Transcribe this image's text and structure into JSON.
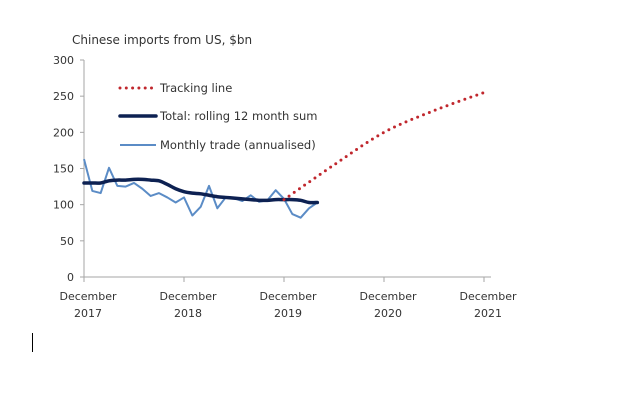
{
  "chart_data": {
    "type": "line",
    "title": "Chinese imports from US, $bn",
    "xlabel": "",
    "ylabel": "",
    "ylim": [
      0,
      300
    ],
    "yticks": [
      0,
      50,
      100,
      150,
      200,
      250,
      300
    ],
    "xticks": [
      {
        "line1": "December",
        "line2": "2017",
        "month_index": 0
      },
      {
        "line1": "December",
        "line2": "2018",
        "month_index": 12
      },
      {
        "line1": "December",
        "line2": "2019",
        "month_index": 24
      },
      {
        "line1": "December",
        "line2": "2020",
        "month_index": 36
      },
      {
        "line1": "December",
        "line2": "2021",
        "month_index": 48
      }
    ],
    "xlim_months": [
      0,
      48
    ],
    "x_unit": "months since December 2017",
    "grid": false,
    "legend_placement": "top-left",
    "series": [
      {
        "name": "Tracking line",
        "style": "dotted",
        "color": "#c0272d",
        "x": [
          24,
          30,
          36,
          42,
          48
        ],
        "values": [
          107,
          155,
          200,
          230,
          255
        ]
      },
      {
        "name": "Total: rolling 12 month sum",
        "style": "thick",
        "color": "#0d2152",
        "x": [
          0,
          1,
          2,
          3,
          4,
          5,
          6,
          7,
          8,
          9,
          10,
          11,
          12,
          13,
          14,
          15,
          16,
          17,
          18,
          19,
          20,
          21,
          22,
          23,
          24,
          25,
          26,
          27,
          28
        ],
        "values": [
          130,
          130,
          130,
          133,
          134,
          134,
          135,
          135,
          134,
          133,
          128,
          122,
          118,
          116,
          115,
          113,
          111,
          110,
          109,
          108,
          107,
          106,
          106,
          107,
          107,
          107,
          106,
          103,
          103
        ]
      },
      {
        "name": "Monthly trade (annualised)",
        "style": "thin",
        "color": "#5b8cc6",
        "x": [
          0,
          1,
          2,
          3,
          4,
          5,
          6,
          7,
          8,
          9,
          10,
          11,
          12,
          13,
          14,
          15,
          16,
          17,
          18,
          19,
          20,
          21,
          22,
          23,
          24,
          25,
          26,
          27,
          28
        ],
        "values": [
          163,
          119,
          116,
          151,
          126,
          125,
          130,
          122,
          112,
          116,
          110,
          103,
          110,
          85,
          97,
          126,
          95,
          110,
          109,
          105,
          113,
          104,
          106,
          120,
          108,
          87,
          82,
          95,
          103
        ]
      }
    ]
  }
}
